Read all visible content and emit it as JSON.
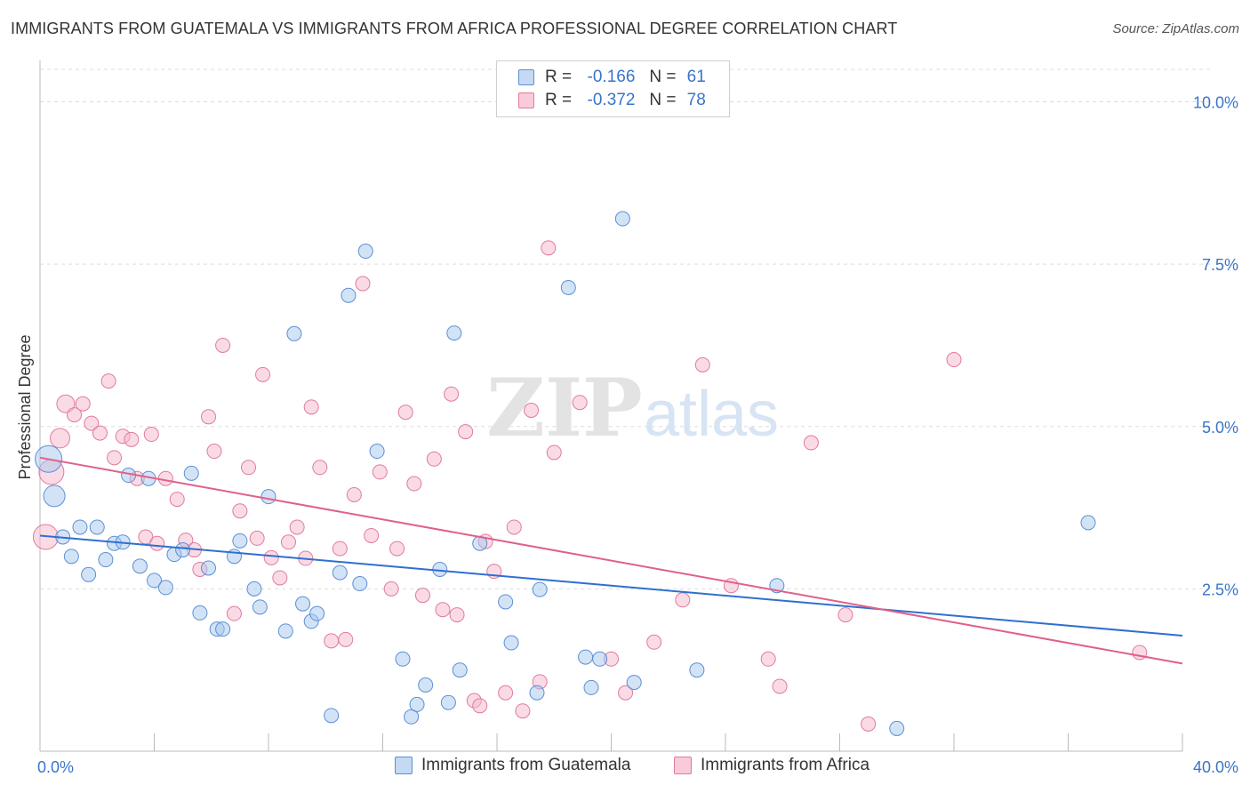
{
  "header": {
    "title": "IMMIGRANTS FROM GUATEMALA VS IMMIGRANTS FROM AFRICA PROFESSIONAL DEGREE CORRELATION CHART",
    "source": "Source: ZipAtlas.com"
  },
  "watermark": {
    "zip": "ZIP",
    "atlas": "atlas"
  },
  "legend_stats": {
    "r_label": "R =",
    "n_label": "N =",
    "guatemala": {
      "r": "-0.166",
      "n": "61"
    },
    "africa": {
      "r": "-0.372",
      "n": "78"
    }
  },
  "colors": {
    "guatemala_fill": "#a8c8ee",
    "guatemala_stroke": "#5b8fd6",
    "guatemala_line": "#2f6fcf",
    "africa_fill": "#f5b8cb",
    "africa_stroke": "#e07b9c",
    "africa_line": "#e0608a",
    "tick_text": "#3a74c8",
    "grid": "#dddddd"
  },
  "chart_data": {
    "type": "scatter",
    "title": "IMMIGRANTS FROM GUATEMALA VS IMMIGRANTS FROM AFRICA PROFESSIONAL DEGREE CORRELATION CHART",
    "xlabel": "",
    "ylabel": "Professional Degree",
    "xlim": [
      0,
      40
    ],
    "ylim": [
      0,
      10.5
    ],
    "x_ticks_labeled": [
      {
        "value": 0,
        "label": "0.0%"
      },
      {
        "value": 40,
        "label": "40.0%"
      }
    ],
    "x_minor_ticks": [
      0,
      4,
      8,
      12,
      16,
      20,
      24,
      28,
      32,
      36,
      40
    ],
    "y_ticks": [
      {
        "value": 2.5,
        "label": "2.5%"
      },
      {
        "value": 5.0,
        "label": "5.0%"
      },
      {
        "value": 7.5,
        "label": "7.5%"
      },
      {
        "value": 10.0,
        "label": "10.0%"
      }
    ],
    "grid": "horizontal dashed",
    "legend_position": "bottom-center",
    "series": [
      {
        "name": "Immigrants from Guatemala",
        "color": "#a8c8ee",
        "trend": {
          "x": [
            0,
            40
          ],
          "y": [
            3.32,
            1.78
          ]
        },
        "points": [
          {
            "x": 0.3,
            "y": 4.5,
            "s": 15
          },
          {
            "x": 0.5,
            "y": 3.93,
            "s": 12
          },
          {
            "x": 0.8,
            "y": 3.3
          },
          {
            "x": 1.1,
            "y": 3.0
          },
          {
            "x": 1.4,
            "y": 3.45
          },
          {
            "x": 1.7,
            "y": 2.72
          },
          {
            "x": 2.0,
            "y": 3.45
          },
          {
            "x": 2.3,
            "y": 2.95
          },
          {
            "x": 2.6,
            "y": 3.2
          },
          {
            "x": 2.9,
            "y": 3.22
          },
          {
            "x": 3.1,
            "y": 4.25
          },
          {
            "x": 3.5,
            "y": 2.85
          },
          {
            "x": 3.8,
            "y": 4.2
          },
          {
            "x": 4.0,
            "y": 2.63
          },
          {
            "x": 4.4,
            "y": 2.52
          },
          {
            "x": 4.7,
            "y": 3.03
          },
          {
            "x": 5.0,
            "y": 3.1
          },
          {
            "x": 5.3,
            "y": 4.28
          },
          {
            "x": 5.6,
            "y": 2.13
          },
          {
            "x": 5.9,
            "y": 2.82
          },
          {
            "x": 6.2,
            "y": 1.88
          },
          {
            "x": 6.4,
            "y": 1.88
          },
          {
            "x": 6.8,
            "y": 3.0
          },
          {
            "x": 7.0,
            "y": 3.24
          },
          {
            "x": 7.5,
            "y": 2.5
          },
          {
            "x": 7.7,
            "y": 2.22
          },
          {
            "x": 8.0,
            "y": 3.92
          },
          {
            "x": 8.6,
            "y": 1.85
          },
          {
            "x": 8.9,
            "y": 6.43
          },
          {
            "x": 9.2,
            "y": 2.27
          },
          {
            "x": 9.5,
            "y": 2.0
          },
          {
            "x": 9.7,
            "y": 2.12
          },
          {
            "x": 10.2,
            "y": 0.55
          },
          {
            "x": 10.5,
            "y": 2.75
          },
          {
            "x": 10.8,
            "y": 7.02
          },
          {
            "x": 11.2,
            "y": 2.58
          },
          {
            "x": 11.4,
            "y": 7.7
          },
          {
            "x": 11.8,
            "y": 4.62
          },
          {
            "x": 12.7,
            "y": 1.42
          },
          {
            "x": 13.0,
            "y": 0.53
          },
          {
            "x": 13.2,
            "y": 0.72
          },
          {
            "x": 13.5,
            "y": 1.02
          },
          {
            "x": 14.0,
            "y": 2.8
          },
          {
            "x": 14.3,
            "y": 0.75
          },
          {
            "x": 14.5,
            "y": 6.44
          },
          {
            "x": 14.7,
            "y": 1.25
          },
          {
            "x": 15.4,
            "y": 3.2
          },
          {
            "x": 16.3,
            "y": 2.3
          },
          {
            "x": 16.5,
            "y": 1.67
          },
          {
            "x": 17.5,
            "y": 2.49
          },
          {
            "x": 17.4,
            "y": 0.9
          },
          {
            "x": 18.5,
            "y": 7.14
          },
          {
            "x": 19.1,
            "y": 1.45
          },
          {
            "x": 19.3,
            "y": 0.98
          },
          {
            "x": 19.6,
            "y": 1.42
          },
          {
            "x": 20.4,
            "y": 8.2
          },
          {
            "x": 20.8,
            "y": 1.06
          },
          {
            "x": 23.0,
            "y": 1.25
          },
          {
            "x": 25.8,
            "y": 2.55
          },
          {
            "x": 30.0,
            "y": 0.35
          },
          {
            "x": 36.7,
            "y": 3.52
          }
        ]
      },
      {
        "name": "Immigrants from Africa",
        "color": "#f5b8cb",
        "trend": {
          "x": [
            0,
            40
          ],
          "y": [
            4.52,
            1.35
          ]
        },
        "points": [
          {
            "x": 0.2,
            "y": 3.3,
            "s": 14
          },
          {
            "x": 0.4,
            "y": 4.3,
            "s": 14
          },
          {
            "x": 0.7,
            "y": 4.82,
            "s": 11
          },
          {
            "x": 0.9,
            "y": 5.35,
            "s": 10
          },
          {
            "x": 1.2,
            "y": 5.18
          },
          {
            "x": 1.5,
            "y": 5.35
          },
          {
            "x": 1.8,
            "y": 5.05
          },
          {
            "x": 2.1,
            "y": 4.9
          },
          {
            "x": 2.4,
            "y": 5.7
          },
          {
            "x": 2.6,
            "y": 4.52
          },
          {
            "x": 2.9,
            "y": 4.85
          },
          {
            "x": 3.2,
            "y": 4.8
          },
          {
            "x": 3.4,
            "y": 4.2
          },
          {
            "x": 3.7,
            "y": 3.3
          },
          {
            "x": 3.9,
            "y": 4.88
          },
          {
            "x": 4.1,
            "y": 3.2
          },
          {
            "x": 4.4,
            "y": 4.2
          },
          {
            "x": 4.8,
            "y": 3.88
          },
          {
            "x": 5.1,
            "y": 3.25
          },
          {
            "x": 5.4,
            "y": 3.1
          },
          {
            "x": 5.6,
            "y": 2.8
          },
          {
            "x": 5.9,
            "y": 5.15
          },
          {
            "x": 6.1,
            "y": 4.62
          },
          {
            "x": 6.4,
            "y": 6.25
          },
          {
            "x": 6.8,
            "y": 2.12
          },
          {
            "x": 7.0,
            "y": 3.7
          },
          {
            "x": 7.3,
            "y": 4.37
          },
          {
            "x": 7.6,
            "y": 3.28
          },
          {
            "x": 7.8,
            "y": 5.8
          },
          {
            "x": 8.1,
            "y": 2.98
          },
          {
            "x": 8.4,
            "y": 2.67
          },
          {
            "x": 8.7,
            "y": 3.22
          },
          {
            "x": 9.0,
            "y": 3.45
          },
          {
            "x": 9.3,
            "y": 2.97
          },
          {
            "x": 9.5,
            "y": 5.3
          },
          {
            "x": 9.8,
            "y": 4.37
          },
          {
            "x": 10.2,
            "y": 1.7
          },
          {
            "x": 10.5,
            "y": 3.12
          },
          {
            "x": 10.7,
            "y": 1.72
          },
          {
            "x": 11.0,
            "y": 3.95
          },
          {
            "x": 11.3,
            "y": 7.2
          },
          {
            "x": 11.6,
            "y": 3.32
          },
          {
            "x": 11.9,
            "y": 4.3
          },
          {
            "x": 12.3,
            "y": 2.5
          },
          {
            "x": 12.5,
            "y": 3.12
          },
          {
            "x": 12.8,
            "y": 5.22
          },
          {
            "x": 13.1,
            "y": 4.12
          },
          {
            "x": 13.4,
            "y": 2.4
          },
          {
            "x": 13.8,
            "y": 4.5
          },
          {
            "x": 14.1,
            "y": 2.18
          },
          {
            "x": 14.4,
            "y": 5.5
          },
          {
            "x": 14.6,
            "y": 2.1
          },
          {
            "x": 14.9,
            "y": 4.92
          },
          {
            "x": 15.2,
            "y": 0.78
          },
          {
            "x": 15.4,
            "y": 0.7
          },
          {
            "x": 15.6,
            "y": 3.23
          },
          {
            "x": 15.9,
            "y": 2.77
          },
          {
            "x": 16.3,
            "y": 0.9
          },
          {
            "x": 16.6,
            "y": 3.45
          },
          {
            "x": 16.9,
            "y": 0.62
          },
          {
            "x": 17.2,
            "y": 5.25
          },
          {
            "x": 17.5,
            "y": 1.07
          },
          {
            "x": 17.8,
            "y": 7.75
          },
          {
            "x": 18.0,
            "y": 4.6
          },
          {
            "x": 18.9,
            "y": 5.37
          },
          {
            "x": 20.0,
            "y": 1.42
          },
          {
            "x": 20.5,
            "y": 0.9
          },
          {
            "x": 21.5,
            "y": 1.68
          },
          {
            "x": 22.5,
            "y": 2.33
          },
          {
            "x": 23.2,
            "y": 5.95
          },
          {
            "x": 24.2,
            "y": 2.55
          },
          {
            "x": 25.5,
            "y": 1.42
          },
          {
            "x": 25.9,
            "y": 1.0
          },
          {
            "x": 27.0,
            "y": 4.75
          },
          {
            "x": 28.2,
            "y": 2.1
          },
          {
            "x": 29.0,
            "y": 0.42
          },
          {
            "x": 32.0,
            "y": 6.03
          },
          {
            "x": 38.5,
            "y": 1.52
          }
        ]
      }
    ]
  }
}
